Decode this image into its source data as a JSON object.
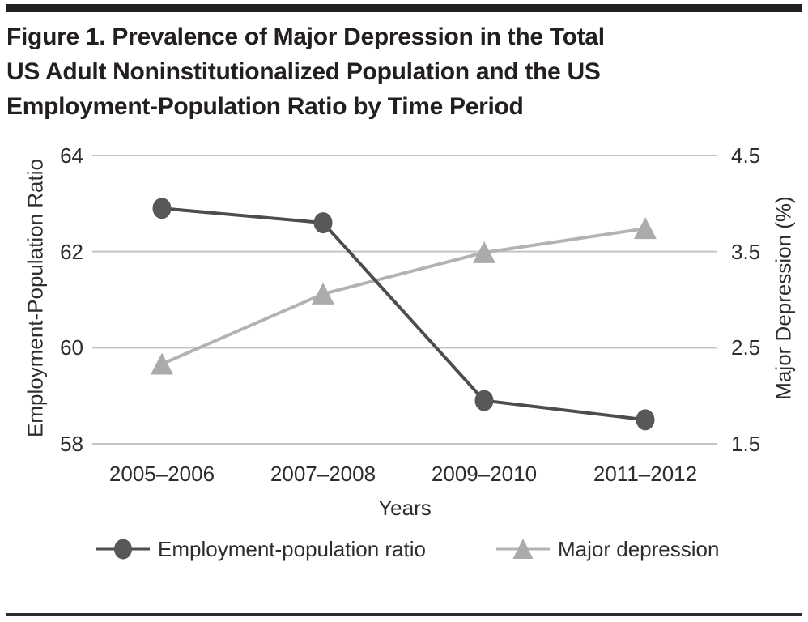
{
  "title": {
    "lines": [
      "Figure 1. Prevalence of Major Depression in the Total",
      "US Adult Noninstitutionalized Population and the US",
      "Employment-Population Ratio by Time Period"
    ]
  },
  "chart_data": {
    "type": "line",
    "categories": [
      "2005–2006",
      "2007–2008",
      "2009–2010",
      "2011–2012"
    ],
    "xlabel": "Years",
    "grid": true,
    "legend_position": "bottom",
    "axes": {
      "left": {
        "label": "Employment-Population Ratio",
        "range": [
          58,
          64
        ],
        "ticks": [
          {
            "value": 64,
            "label": "64"
          },
          {
            "value": 62,
            "label": "62"
          },
          {
            "value": 60,
            "label": "60"
          },
          {
            "value": 58,
            "label": "58"
          }
        ]
      },
      "right": {
        "label": "Major Depression (%)",
        "range": [
          1.5,
          4.5
        ],
        "ticks": [
          {
            "value": 4.5,
            "label": "4.5"
          },
          {
            "value": 3.5,
            "label": "3.5"
          },
          {
            "value": 2.5,
            "label": "2.5"
          },
          {
            "value": 1.5,
            "label": "1.5"
          }
        ]
      }
    },
    "series": [
      {
        "name": "Employment-population ratio",
        "axis": "left",
        "marker": "circle",
        "line_color": "#4d4d4d",
        "marker_color": "#585858",
        "values": [
          62.9,
          62.6,
          58.9,
          58.5
        ]
      },
      {
        "name": "Major depression",
        "axis": "right",
        "marker": "triangle",
        "line_color": "#b3b3b3",
        "marker_color": "#ababab",
        "values": [
          2.33,
          3.06,
          3.49,
          3.74
        ]
      }
    ],
    "colors": {
      "gridline": "#c3c3c3",
      "text": "#2d2d2d",
      "title": "#231f20"
    }
  }
}
